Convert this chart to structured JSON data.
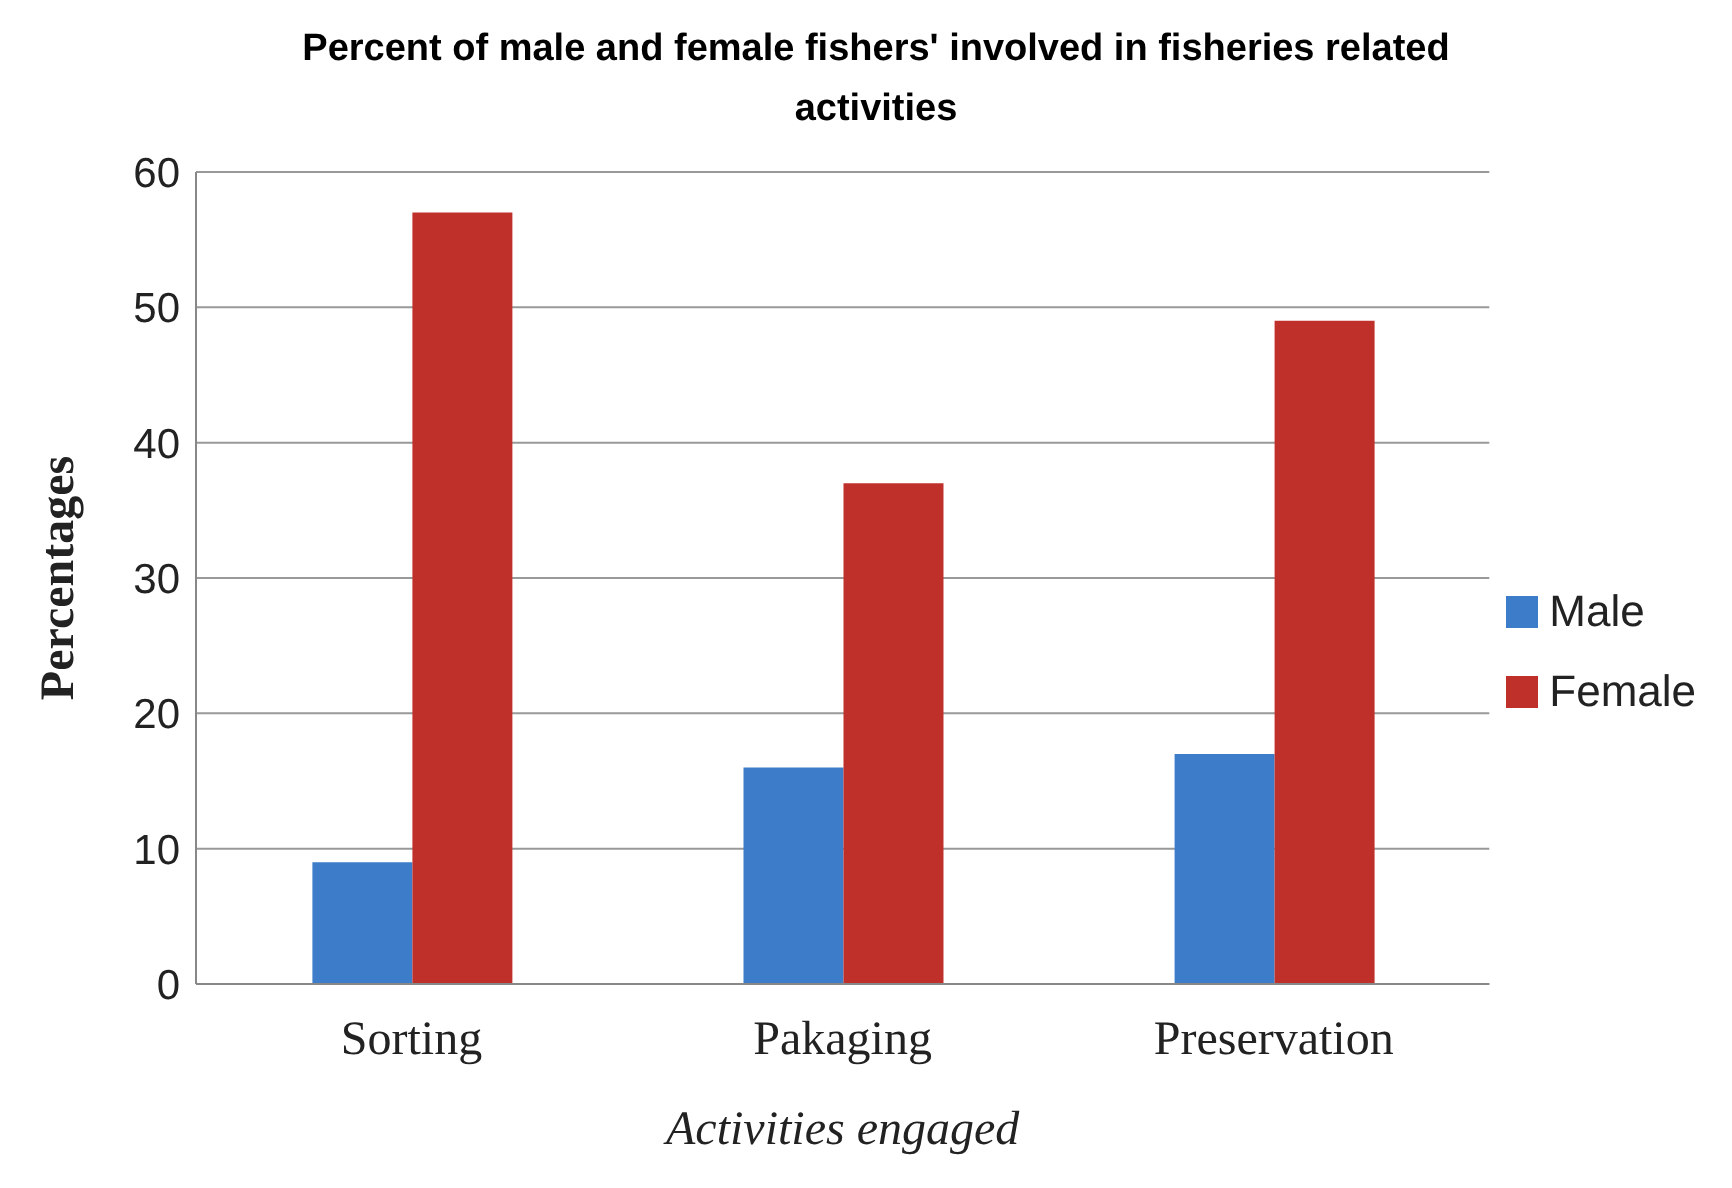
{
  "chart_data": {
    "type": "bar",
    "title": "Percent of male and female fishers' involved in fisheries related activities",
    "xlabel": "Activities engaged",
    "ylabel": "Percentages",
    "categories": [
      "Sorting",
      "Pakaging",
      "Preservation"
    ],
    "series": [
      {
        "name": "Male",
        "color": "#3d7cc9",
        "values": [
          9,
          16,
          17
        ]
      },
      {
        "name": "Female",
        "color": "#c0302b",
        "values": [
          57,
          37,
          49
        ]
      }
    ],
    "ylim": [
      0,
      60
    ],
    "yticks": [
      0,
      10,
      20,
      30,
      40,
      50,
      60
    ],
    "grid": "y",
    "legend": "right"
  }
}
